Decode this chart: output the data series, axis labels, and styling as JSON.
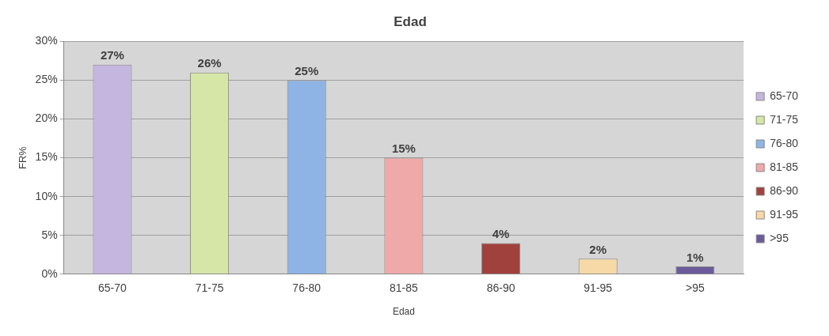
{
  "chart_data": {
    "type": "bar",
    "title": "Edad",
    "xlabel": "Edad",
    "ylabel": "FR%",
    "categories": [
      "65-70",
      "71-75",
      "76-80",
      "81-85",
      "86-90",
      "91-95",
      ">95"
    ],
    "series": [
      {
        "name": "65-70",
        "color": "#c5b6df",
        "values": [
          27,
          null,
          null,
          null,
          null,
          null,
          null
        ],
        "value_labels": [
          "27%",
          null,
          null,
          null,
          null,
          null,
          null
        ]
      },
      {
        "name": "71-75",
        "color": "#d5e6a6",
        "values": [
          null,
          26,
          null,
          null,
          null,
          null,
          null
        ],
        "value_labels": [
          null,
          "26%",
          null,
          null,
          null,
          null,
          null
        ]
      },
      {
        "name": "76-80",
        "color": "#8db4e5",
        "values": [
          null,
          null,
          25,
          null,
          null,
          null,
          null
        ],
        "value_labels": [
          null,
          null,
          "25%",
          null,
          null,
          null,
          null
        ]
      },
      {
        "name": "81-85",
        "color": "#f0a9a9",
        "values": [
          null,
          null,
          null,
          15,
          null,
          null,
          null
        ],
        "value_labels": [
          null,
          null,
          null,
          "15%",
          null,
          null,
          null
        ]
      },
      {
        "name": "86-90",
        "color": "#a1413d",
        "values": [
          null,
          null,
          null,
          null,
          4,
          null,
          null
        ],
        "value_labels": [
          null,
          null,
          null,
          null,
          "4%",
          null,
          null
        ]
      },
      {
        "name": "91-95",
        "color": "#f6d9a6",
        "values": [
          null,
          null,
          null,
          null,
          null,
          2,
          null
        ],
        "value_labels": [
          null,
          null,
          null,
          null,
          null,
          "2%",
          null
        ]
      },
      {
        "name": ">95",
        "color": "#6b5b9b",
        "values": [
          null,
          null,
          null,
          null,
          null,
          null,
          1
        ],
        "value_labels": [
          null,
          null,
          null,
          null,
          null,
          null,
          "1%"
        ]
      }
    ],
    "ylim": [
      0,
      30
    ],
    "yticks": [
      {
        "value": 0,
        "label": "0%"
      },
      {
        "value": 5,
        "label": "5%"
      },
      {
        "value": 10,
        "label": "10%"
      },
      {
        "value": 15,
        "label": "15%"
      },
      {
        "value": 20,
        "label": "20%"
      },
      {
        "value": 25,
        "label": "25%"
      },
      {
        "value": 30,
        "label": "30%"
      }
    ],
    "grid": "y",
    "legend": "right"
  }
}
